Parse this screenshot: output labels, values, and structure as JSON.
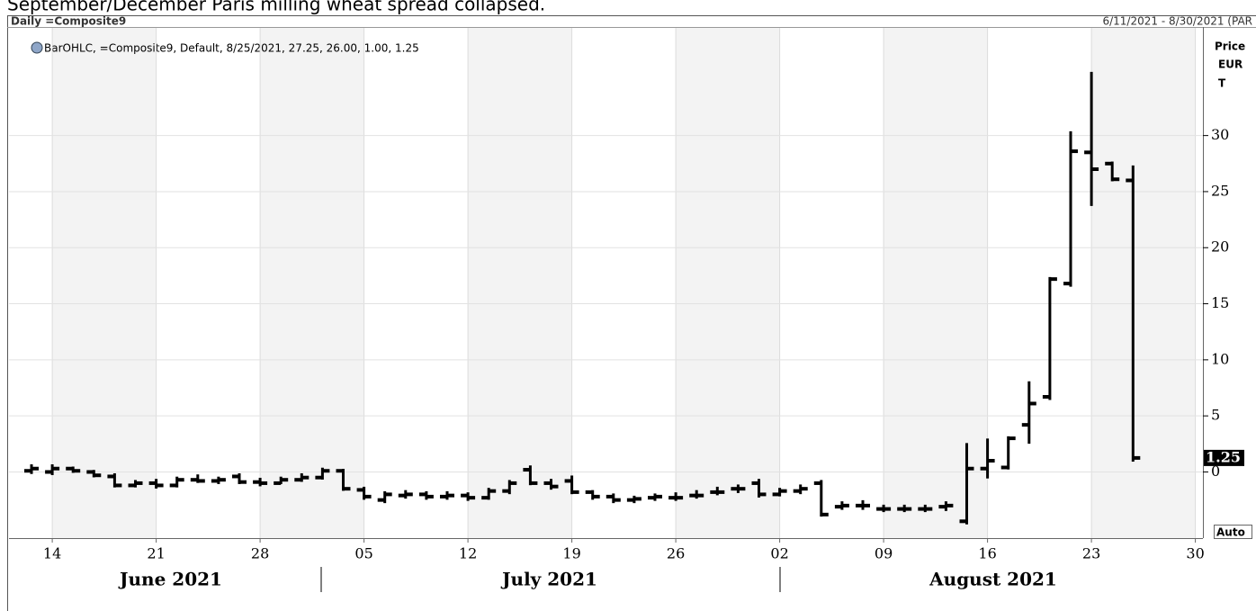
{
  "caption": "September/December Paris milling wheat spread collapsed.",
  "header": {
    "left": "Daily =Composite9",
    "right": "6/11/2021 - 8/30/2021 (PAR"
  },
  "legend": "BarOHLC, =Composite9, Default, 8/25/2021, 27.25, 26.00, 1.00, 1.25",
  "axis_label": [
    "Price",
    "EUR",
    "T"
  ],
  "scale_button": "Auto",
  "months": [
    "June 2021",
    "July 2021",
    "August 2021"
  ],
  "chart_data": {
    "type": "ohlc",
    "color": "#000000",
    "grid": true,
    "categories": [
      null,
      "14",
      null,
      null,
      null,
      null,
      "21",
      null,
      null,
      null,
      null,
      "28",
      null,
      null,
      null,
      null,
      "05",
      null,
      null,
      null,
      null,
      "12",
      null,
      null,
      null,
      null,
      "19",
      null,
      null,
      null,
      null,
      "26",
      null,
      null,
      null,
      null,
      "02",
      null,
      null,
      null,
      null,
      "09",
      null,
      null,
      null,
      null,
      "16",
      null,
      null,
      null,
      null,
      "23",
      null,
      null,
      null,
      null,
      "30"
    ],
    "open": [
      0.1,
      0.0,
      0.3,
      0.0,
      -0.4,
      -1.2,
      -1.0,
      -1.2,
      -0.7,
      -0.8,
      -0.4,
      -0.9,
      -1.0,
      -0.7,
      -0.5,
      0.1,
      -1.6,
      -2.5,
      -2.1,
      -2.0,
      -2.2,
      -2.1,
      -2.3,
      -1.7,
      0.2,
      -1.0,
      -0.8,
      -1.8,
      -2.2,
      -2.5,
      -2.3,
      -2.3,
      -2.1,
      -1.8,
      -1.5,
      -1.0,
      -2.0,
      -1.7,
      -1.0,
      -3.1,
      -3.0,
      -3.3,
      -3.3,
      -3.3,
      -3.1,
      -4.4,
      0.3,
      0.4,
      4.2,
      6.7,
      16.8,
      28.5,
      27.5,
      26.0,
      null,
      null,
      null
    ],
    "high": [
      0.6,
      0.6,
      0.4,
      0.1,
      -0.2,
      -0.8,
      -0.7,
      -0.5,
      -0.3,
      -0.5,
      -0.2,
      -0.6,
      -0.5,
      -0.2,
      0.3,
      0.2,
      -1.4,
      -1.8,
      -1.7,
      -1.8,
      -1.8,
      -1.9,
      -1.5,
      -0.8,
      0.5,
      -0.7,
      -0.4,
      -1.7,
      -2.0,
      -2.2,
      -2.0,
      -1.9,
      -1.7,
      -1.4,
      -1.2,
      -0.7,
      -1.5,
      -1.2,
      -0.8,
      -2.7,
      -2.6,
      -3.0,
      -3.0,
      -3.0,
      -2.7,
      2.5,
      2.9,
      3.1,
      8.0,
      17.3,
      30.3,
      35.6,
      27.6,
      27.25,
      null,
      null,
      null
    ],
    "low": [
      -0.1,
      -0.2,
      0.0,
      -0.4,
      -1.3,
      -1.3,
      -1.4,
      -1.3,
      -0.9,
      -1.0,
      -1.0,
      -1.2,
      -1.0,
      -0.8,
      -0.6,
      -1.6,
      -2.4,
      -2.7,
      -2.3,
      -2.4,
      -2.4,
      -2.5,
      -2.4,
      -1.9,
      -1.1,
      -1.5,
      -1.9,
      -2.4,
      -2.7,
      -2.7,
      -2.5,
      -2.5,
      -2.3,
      -2.0,
      -1.8,
      -2.2,
      -2.1,
      -1.9,
      -3.9,
      -3.3,
      -3.3,
      -3.5,
      -3.5,
      -3.5,
      -3.4,
      -4.6,
      -0.5,
      0.3,
      2.6,
      6.5,
      16.6,
      23.8,
      26.0,
      1.0,
      null,
      null,
      null
    ],
    "close": [
      0.3,
      0.3,
      0.1,
      -0.3,
      -1.2,
      -1.0,
      -1.2,
      -0.7,
      -0.8,
      -0.7,
      -0.9,
      -1.0,
      -0.7,
      -0.5,
      0.1,
      -1.5,
      -2.2,
      -2.0,
      -2.0,
      -2.2,
      -2.1,
      -2.3,
      -1.7,
      -1.0,
      -1.0,
      -1.3,
      -1.8,
      -2.2,
      -2.5,
      -2.4,
      -2.2,
      -2.3,
      -2.1,
      -1.8,
      -1.5,
      -2.0,
      -1.7,
      -1.5,
      -3.8,
      -3.0,
      -3.0,
      -3.3,
      -3.3,
      -3.3,
      -3.0,
      0.3,
      1.0,
      3.0,
      6.1,
      17.2,
      28.6,
      27.0,
      26.1,
      1.25,
      null,
      null,
      null
    ],
    "ylim": [
      -5.9,
      39.6
    ],
    "yticks": [
      0,
      5,
      10,
      15,
      20,
      25,
      30
    ]
  }
}
